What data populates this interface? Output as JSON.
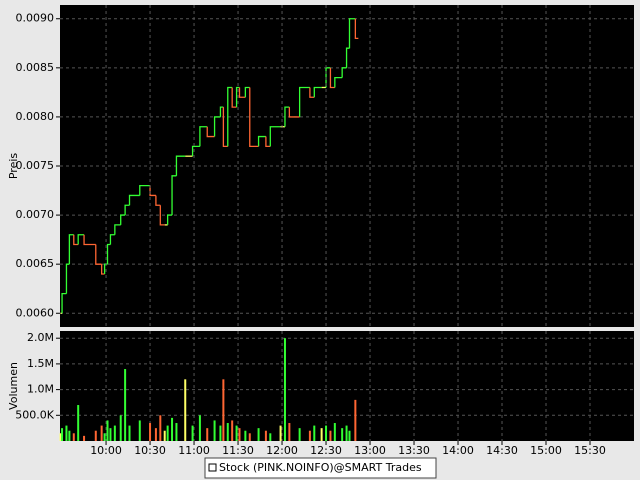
{
  "legend": "Stock (PINK.NOINFO)@SMART Trades",
  "colors": {
    "up": "#33ff33",
    "down": "#ff6633",
    "flat": "#ffff66"
  },
  "chart_data": [
    {
      "type": "line",
      "step": true,
      "ylabel": "Preis",
      "x": [
        569,
        570,
        573,
        575,
        578,
        581,
        585,
        593,
        597,
        599,
        601,
        603,
        606,
        610,
        613,
        616,
        623,
        630,
        634,
        637,
        640,
        642,
        645,
        648,
        654,
        659,
        664,
        669,
        674,
        678,
        680,
        683,
        686,
        689,
        691,
        695,
        698,
        704,
        709,
        712,
        719,
        722,
        725,
        732,
        739,
        742,
        747,
        750,
        753,
        756,
        761,
        764,
        766,
        770
      ],
      "values": [
        0.006,
        0.0062,
        0.0065,
        0.0068,
        0.0067,
        0.0068,
        0.0067,
        0.0065,
        0.0064,
        0.0065,
        0.0067,
        0.0068,
        0.0069,
        0.007,
        0.0071,
        0.0072,
        0.0073,
        0.0072,
        0.0071,
        0.0069,
        0.0069,
        0.007,
        0.0074,
        0.0076,
        0.0076,
        0.0077,
        0.0079,
        0.0078,
        0.008,
        0.0081,
        0.0077,
        0.0083,
        0.0081,
        0.0083,
        0.0082,
        0.0083,
        0.0077,
        0.0078,
        0.0077,
        0.0079,
        0.0079,
        0.0081,
        0.008,
        0.0083,
        0.0082,
        0.0083,
        0.0083,
        0.0085,
        0.0083,
        0.0084,
        0.0085,
        0.0087,
        0.009,
        0.0088
      ],
      "xlim": [
        568.6,
        960
      ],
      "ylim": [
        0.00586,
        0.00914
      ],
      "yticks": [
        {
          "value": 0.006,
          "label": "0.0060"
        },
        {
          "value": 0.0065,
          "label": "0.0065"
        },
        {
          "value": 0.007,
          "label": "0.0070"
        },
        {
          "value": 0.0075,
          "label": "0.0075"
        },
        {
          "value": 0.008,
          "label": "0.0080"
        },
        {
          "value": 0.0085,
          "label": "0.0085"
        },
        {
          "value": 0.009,
          "label": "0.0090"
        }
      ],
      "grid": true
    },
    {
      "type": "bar",
      "ylabel": "Volumen",
      "x": [
        569,
        570,
        573,
        575,
        578,
        581,
        585,
        593,
        597,
        599,
        601,
        603,
        606,
        610,
        613,
        616,
        623,
        630,
        634,
        637,
        640,
        642,
        645,
        648,
        654,
        659,
        664,
        669,
        674,
        678,
        680,
        683,
        686,
        689,
        691,
        695,
        698,
        704,
        709,
        712,
        719,
        722,
        725,
        732,
        739,
        742,
        747,
        750,
        753,
        756,
        761,
        764,
        766,
        770
      ],
      "values": [
        150000,
        250000,
        300000,
        200000,
        150000,
        700000,
        100000,
        200000,
        300000,
        150000,
        400000,
        250000,
        300000,
        500000,
        1400000,
        300000,
        400000,
        350000,
        250000,
        500000,
        200000,
        300000,
        450000,
        350000,
        1200000,
        300000,
        500000,
        250000,
        400000,
        300000,
        1200000,
        350000,
        400000,
        300000,
        250000,
        200000,
        150000,
        250000,
        200000,
        150000,
        300000,
        2000000,
        350000,
        250000,
        200000,
        300000,
        250000,
        300000,
        200000,
        350000,
        250000,
        300000,
        200000,
        800000
      ],
      "xlim": [
        568.6,
        960
      ],
      "ylim": [
        0,
        2140000
      ],
      "yticks": [
        {
          "value": 500000,
          "label": "500.0K"
        },
        {
          "value": 1000000,
          "label": "1.0M"
        },
        {
          "value": 1500000,
          "label": "1.5M"
        },
        {
          "value": 2000000,
          "label": "2.0M"
        }
      ],
      "xticks": [
        {
          "value": 600,
          "label": "10:00"
        },
        {
          "value": 630,
          "label": "10:30"
        },
        {
          "value": 660,
          "label": "11:00"
        },
        {
          "value": 690,
          "label": "11:30"
        },
        {
          "value": 720,
          "label": "12:00"
        },
        {
          "value": 750,
          "label": "12:30"
        },
        {
          "value": 780,
          "label": "13:00"
        },
        {
          "value": 810,
          "label": "13:30"
        },
        {
          "value": 840,
          "label": "14:00"
        },
        {
          "value": 870,
          "label": "14:30"
        },
        {
          "value": 900,
          "label": "15:00"
        },
        {
          "value": 930,
          "label": "15:30"
        }
      ],
      "grid": true
    }
  ]
}
